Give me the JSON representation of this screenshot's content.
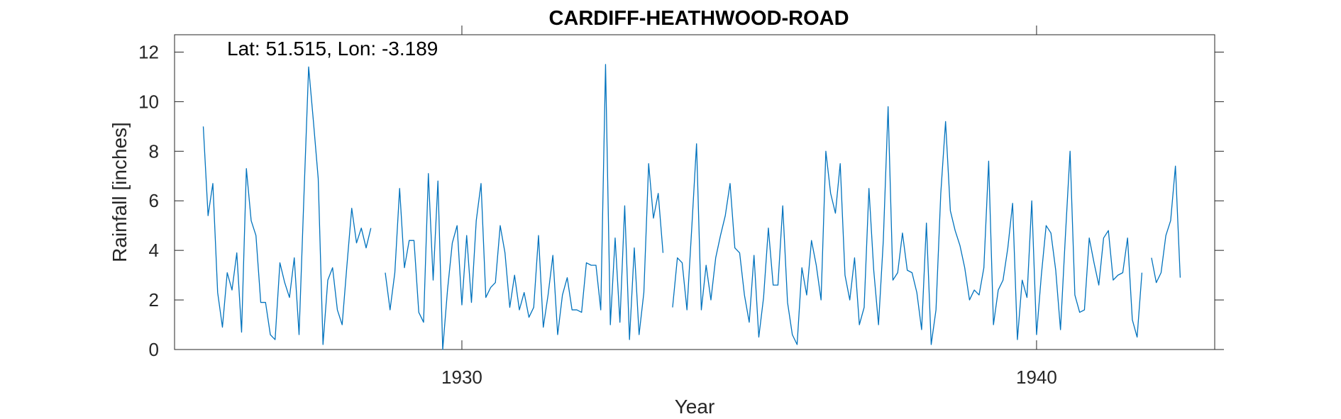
{
  "chart_data": {
    "type": "line",
    "title": "CARDIFF-HEATHWOOD-ROAD",
    "annotation": "Lat: 51.515, Lon: -3.189",
    "xlabel": "Year",
    "ylabel": "Rainfall [inches]",
    "xlim": [
      1925.0,
      1943.1
    ],
    "ylim": [
      0,
      12.7
    ],
    "xticks": [
      1930,
      1940
    ],
    "xtick_labels": [
      "1930",
      "1940"
    ],
    "yticks": [
      0,
      2,
      4,
      6,
      8,
      10,
      12
    ],
    "ytick_labels": [
      "0",
      "2",
      "4",
      "6",
      "8",
      "10",
      "12"
    ],
    "grid": false,
    "line_color": "#0072BD",
    "series": [
      {
        "start_year": 1925.5,
        "monthly_values": [
          9.0,
          5.4,
          6.7,
          2.3,
          0.9,
          3.1,
          2.4,
          3.9,
          0.7,
          7.3,
          5.2,
          4.6,
          1.9,
          1.9,
          0.6,
          0.4,
          3.5,
          2.7,
          2.1,
          3.7,
          0.6,
          6.1,
          11.4,
          9.2,
          6.9,
          0.2,
          2.8,
          3.3,
          1.6,
          1.0,
          3.4,
          5.7,
          4.3,
          4.9,
          4.1,
          4.9,
          null,
          null,
          3.1,
          1.6,
          3.1,
          6.5,
          3.3,
          4.4,
          4.4,
          1.5,
          1.1,
          7.1,
          2.8,
          6.8,
          0.0,
          2.4,
          4.3,
          5.0,
          1.8,
          4.6,
          1.9,
          5.2,
          6.7,
          2.1,
          2.5,
          2.7,
          5.0,
          3.9,
          1.7,
          3.0,
          1.6,
          2.3,
          1.3,
          1.7,
          4.6,
          0.9,
          2.2,
          3.8,
          0.6,
          2.2,
          2.9,
          1.6,
          1.6,
          1.5,
          3.5,
          3.4,
          3.4,
          1.6,
          11.5,
          1.0,
          4.5,
          1.1,
          5.8,
          0.4,
          4.1,
          0.6,
          2.3,
          7.5,
          5.3,
          6.3,
          3.9,
          null,
          1.7,
          3.7,
          3.5,
          1.6,
          4.9,
          8.3,
          1.6,
          3.4,
          2.0,
          3.7,
          4.6,
          5.4,
          6.7,
          4.1,
          3.9,
          2.2,
          1.1,
          3.8,
          0.5,
          2.1,
          4.9,
          2.6,
          2.6,
          5.8,
          1.9,
          0.6,
          0.2,
          3.3,
          2.2,
          4.4,
          3.4,
          2.0,
          8.0,
          6.3,
          5.5,
          7.5,
          3.0,
          2.0,
          3.7,
          1.0,
          1.7,
          6.5,
          3.2,
          1.0,
          4.4,
          9.8,
          2.8,
          3.1,
          4.7,
          3.2,
          3.1,
          2.3,
          0.8,
          5.1,
          0.2,
          1.6,
          6.3,
          9.2,
          5.6,
          4.8,
          4.2,
          3.3,
          2.0,
          2.4,
          2.2,
          3.3,
          7.6,
          1.0,
          2.4,
          2.8,
          4.1,
          5.9,
          0.4,
          2.8,
          2.1,
          6.0,
          0.6,
          3.0,
          5.0,
          4.7,
          3.2,
          0.8,
          4.5,
          8.0,
          2.2,
          1.5,
          1.6,
          4.5,
          3.5,
          2.6,
          4.5,
          4.8,
          2.8,
          3.0,
          3.1,
          4.5,
          1.2,
          0.5,
          3.1,
          null,
          3.7,
          2.7,
          3.1,
          4.6,
          5.2,
          7.4,
          2.9
        ]
      }
    ]
  }
}
